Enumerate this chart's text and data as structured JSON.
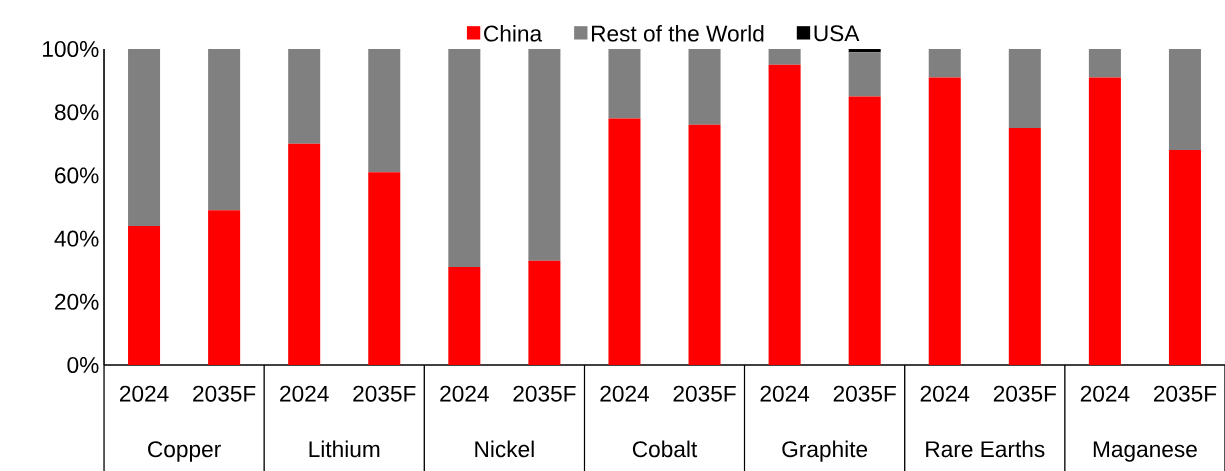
{
  "chart_data": {
    "type": "bar",
    "stacked": true,
    "categories": [
      "2024",
      "2035F",
      "2024",
      "2035F",
      "2024",
      "2035F",
      "2024",
      "2035F",
      "2024",
      "2035F",
      "2024",
      "2035F",
      "2024",
      "2035F"
    ],
    "series": [
      {
        "name": "China",
        "color": "#ff0000",
        "values": [
          44,
          49,
          70,
          61,
          31,
          33,
          78,
          76,
          95,
          85,
          91,
          75,
          91,
          68
        ]
      },
      {
        "name": "Rest of the World",
        "color": "#808080",
        "values": [
          56,
          51,
          30,
          39,
          69,
          67,
          22,
          24,
          5,
          14,
          9,
          25,
          9,
          32
        ]
      },
      {
        "name": "USA",
        "color": "#000000",
        "values": [
          null,
          null,
          null,
          null,
          null,
          null,
          null,
          null,
          null,
          1,
          null,
          null,
          null,
          null
        ]
      }
    ],
    "annotations": [
      "Copper",
      "Lithium",
      "Nickel",
      "Cobalt",
      "Graphite",
      "Rare Earths",
      "Maganese"
    ],
    "ylim": [
      0,
      100
    ],
    "yticks": [
      {
        "value": 0,
        "label": "0%"
      },
      {
        "value": 20,
        "label": "20%"
      },
      {
        "value": 40,
        "label": "40%"
      },
      {
        "value": 60,
        "label": "60%"
      },
      {
        "value": 80,
        "label": "80%"
      },
      {
        "value": 100,
        "label": "100%"
      }
    ],
    "legend": "top"
  }
}
